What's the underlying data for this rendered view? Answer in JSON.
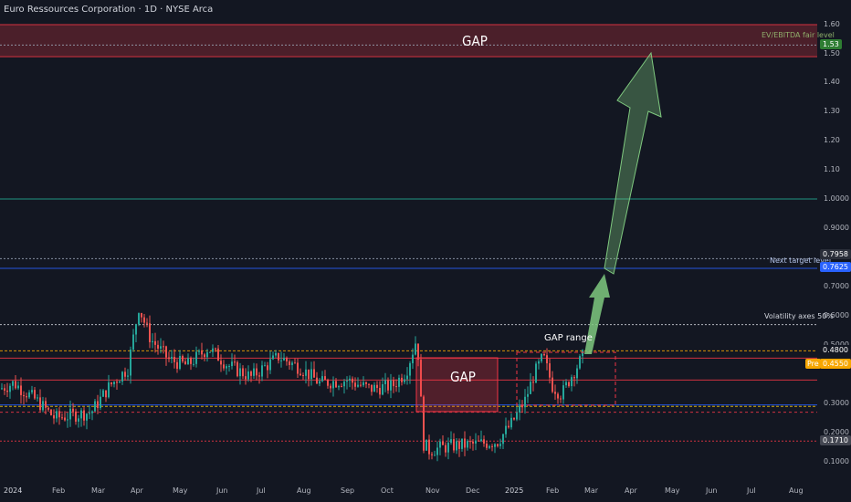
{
  "header": {
    "title": "Euro Ressources Corporation · 1D · NYSE Arca"
  },
  "chart_data": {
    "type": "candlestick",
    "y_axis_ticks": [
      "1.60",
      "1.50",
      "1.40",
      "1.30",
      "1.20",
      "1.10",
      "1.0000",
      "0.9000",
      "0.7000",
      "0.6000",
      "0.5000",
      "0.3000",
      "0.2000",
      "0.1000"
    ],
    "x_axis_ticks": [
      "2024",
      "Feb",
      "Mar",
      "Apr",
      "May",
      "Jun",
      "Jul",
      "Aug",
      "Sep",
      "Oct",
      "Nov",
      "Dec",
      "2025",
      "Feb",
      "Mar",
      "Apr",
      "May",
      "Jun",
      "Jul",
      "Aug"
    ],
    "price_labels": {
      "fair": "1.53",
      "next_target": "0.7958",
      "next_target_2": "0.7625",
      "gap_top": "0.4800",
      "pre_tag": "Pre",
      "pre": "0.4550",
      "low": "0.1710"
    },
    "levels": [
      {
        "name": "gap-top",
        "value": 1.6,
        "color": "#f23645"
      },
      {
        "name": "fair-level",
        "value": 1.53,
        "color": "#9ca6b8"
      },
      {
        "name": "gap-bottom",
        "value": 1.49,
        "color": "#f23645"
      },
      {
        "name": "teal-line",
        "value": 1.0,
        "color": "#22ab94"
      },
      {
        "name": "next-target",
        "value": 0.7958,
        "color": "#9ca6b8"
      },
      {
        "name": "next-target-2",
        "value": 0.7625,
        "color": "#2962ff"
      },
      {
        "name": "volatility",
        "value": 0.57,
        "color": "#d1d4dc"
      },
      {
        "name": "orange-level",
        "value": 0.48,
        "color": "#f7a600"
      },
      {
        "name": "red-level",
        "value": 0.455,
        "color": "#f23645"
      },
      {
        "name": "red-level-2",
        "value": 0.38,
        "color": "#f23645"
      },
      {
        "name": "blue-level",
        "value": 0.295,
        "color": "#2962ff"
      },
      {
        "name": "yellow-level",
        "value": 0.29,
        "color": "#f7c600"
      },
      {
        "name": "red-dash",
        "value": 0.27,
        "color": "#f23645"
      },
      {
        "name": "low-level",
        "value": 0.171,
        "color": "#f23645"
      }
    ],
    "annotations": {
      "gap_label": "GAP",
      "gap_mid_label": "GAP",
      "gap_range": "GAP range",
      "fair_level": "EV/EBITDA fair level",
      "next_target": "Next target level",
      "volatility": "Volatility axes 50%"
    },
    "colors": {
      "up": "#26a69a",
      "down": "#ef5350",
      "arrow": "#7fc97f"
    }
  }
}
